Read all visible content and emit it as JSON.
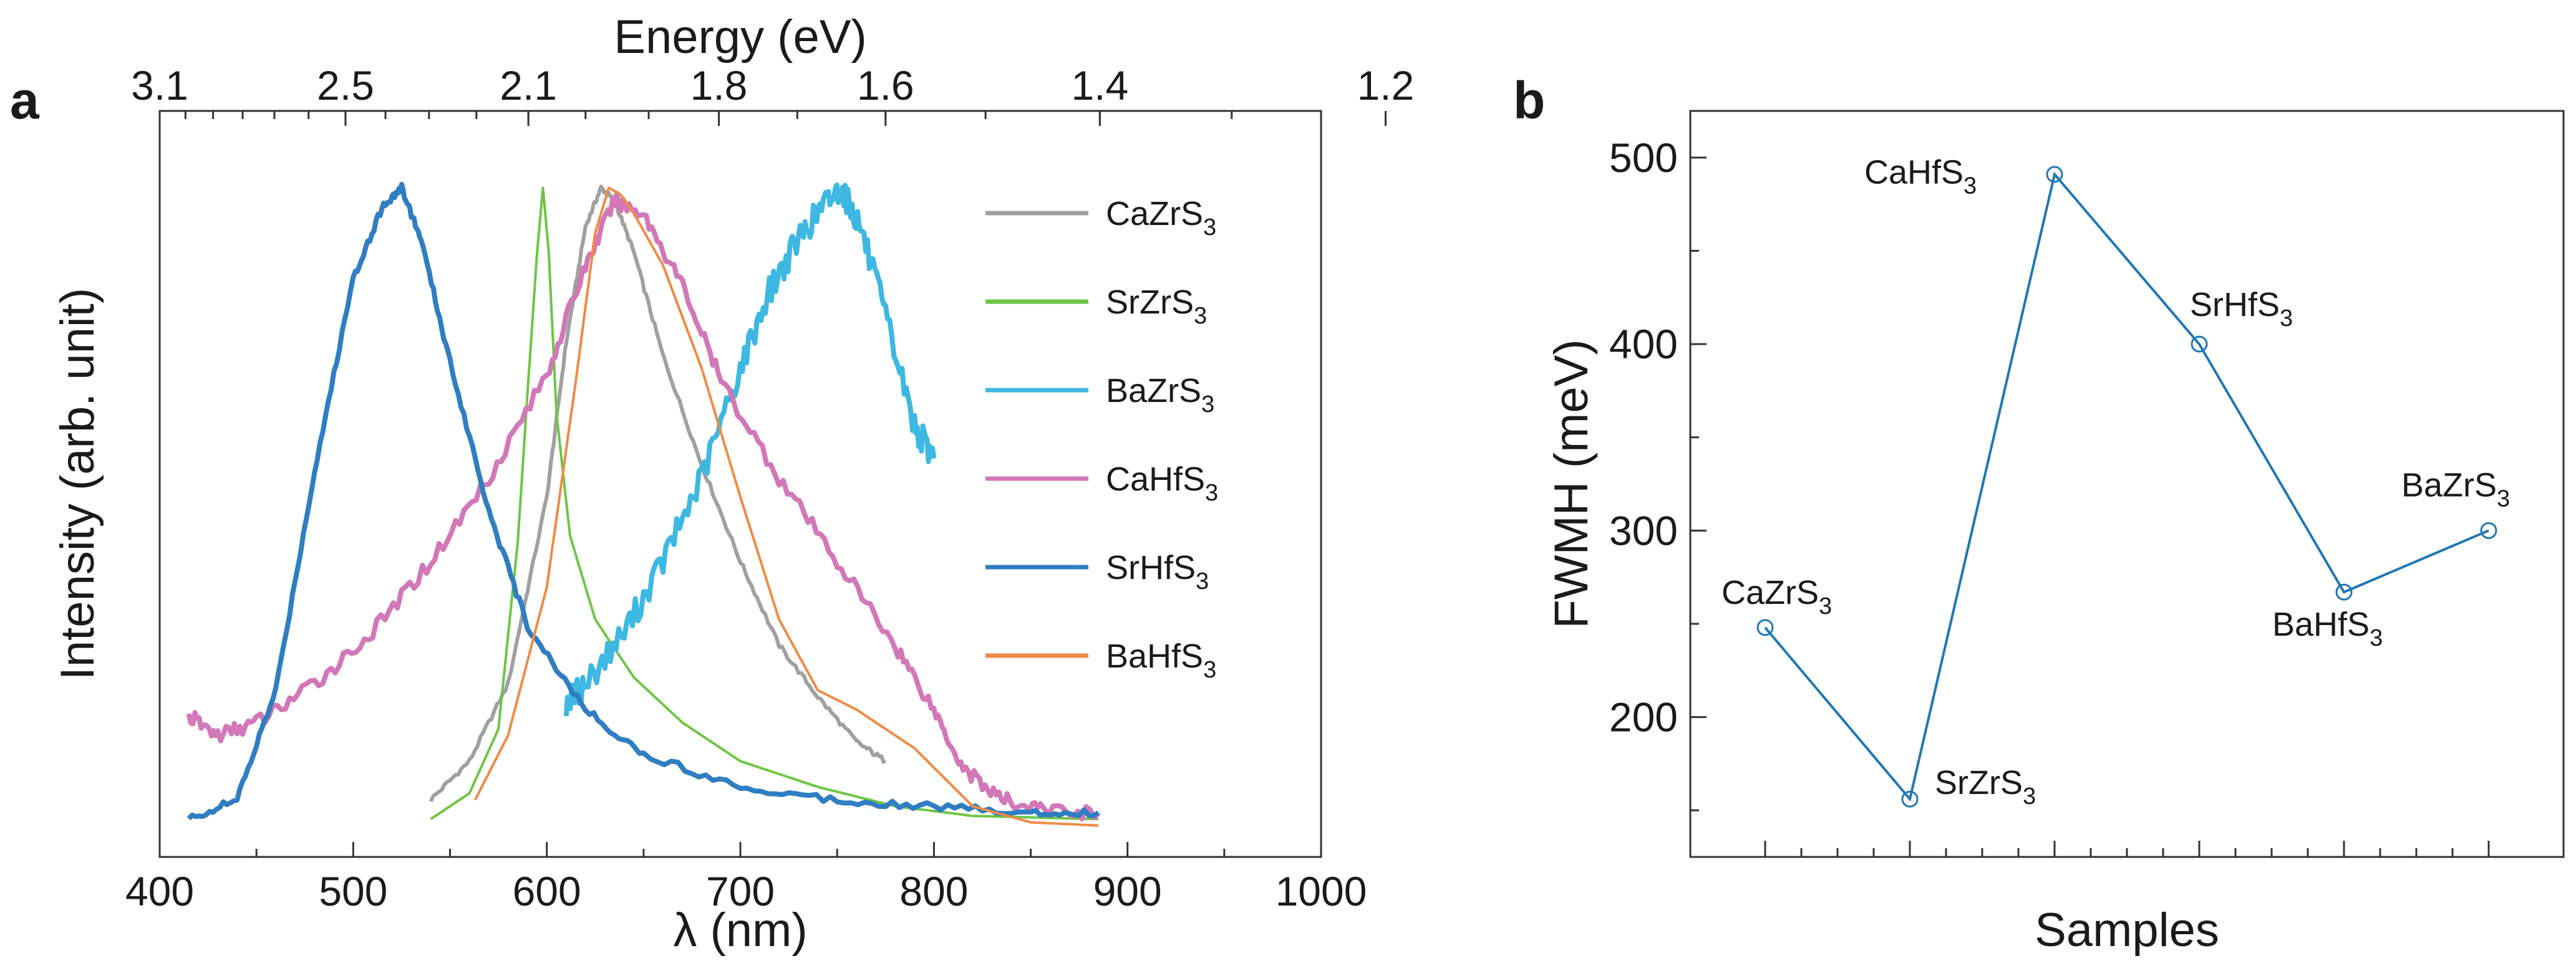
{
  "figure": {
    "panel_a_letter": "a",
    "panel_b_letter": "b"
  },
  "chart_data": [
    {
      "panel": "a",
      "type": "line",
      "title": "",
      "xlabel": "λ (nm)",
      "ylabel": "Intensity (arb. unit)",
      "top_xlabel": "Energy (eV)",
      "xlim": [
        400,
        1000
      ],
      "ylim": [
        0,
        1.1
      ],
      "xticks": [
        400,
        500,
        600,
        700,
        800,
        900,
        1000
      ],
      "xtick_labels": [
        "400",
        "500",
        "600",
        "700",
        "800",
        "900",
        "1000"
      ],
      "top_ticks": [
        3.1,
        2.5,
        2.1,
        1.8,
        1.6,
        1.4,
        1.2
      ],
      "top_tick_labels": [
        "3.1",
        "2.5",
        "2.1",
        "1.8",
        "1.6",
        "1.4",
        "1.2"
      ],
      "legend_position": "top-right",
      "series": [
        {
          "name": "CaZrS",
          "sub": "3",
          "color": "#a0a0a0",
          "width": 6,
          "x": [
            540,
            560,
            580,
            600,
            610,
            620,
            628,
            635,
            645,
            660,
            680,
            700,
            720,
            740,
            760,
            775
          ],
          "y": [
            0.05,
            0.11,
            0.23,
            0.52,
            0.76,
            0.94,
            1.0,
            0.98,
            0.9,
            0.74,
            0.57,
            0.42,
            0.29,
            0.21,
            0.14,
            0.11
          ]
        },
        {
          "name": "SrZrS",
          "sub": "3",
          "color": "#6cc644",
          "width": 4,
          "x": [
            540,
            560,
            575,
            585,
            590,
            595,
            598,
            601,
            605,
            612,
            625,
            645,
            670,
            700,
            740,
            780,
            820,
            885
          ],
          "y": [
            0.02,
            0.06,
            0.16,
            0.45,
            0.68,
            0.9,
            1.0,
            0.9,
            0.65,
            0.46,
            0.33,
            0.24,
            0.17,
            0.11,
            0.07,
            0.04,
            0.025,
            0.02
          ]
        },
        {
          "name": "BaZrS",
          "sub": "3",
          "color": "#3db8e2",
          "width": 8,
          "x": [
            610,
            620,
            640,
            660,
            680,
            700,
            715,
            730,
            742,
            752,
            762,
            775,
            790,
            800
          ],
          "y": [
            0.2,
            0.23,
            0.31,
            0.42,
            0.55,
            0.72,
            0.84,
            0.92,
            0.97,
            1.0,
            0.94,
            0.8,
            0.63,
            0.58
          ]
        },
        {
          "name": "CaHfS",
          "sub": "3",
          "color": "#d277b8",
          "width": 8,
          "x": [
            415,
            430,
            450,
            480,
            510,
            540,
            570,
            600,
            620,
            635,
            650,
            670,
            690,
            720,
            750,
            780,
            800,
            815,
            835,
            855,
            885
          ],
          "y": [
            0.18,
            0.15,
            0.17,
            0.23,
            0.31,
            0.42,
            0.55,
            0.71,
            0.88,
            0.98,
            0.96,
            0.85,
            0.7,
            0.55,
            0.42,
            0.29,
            0.19,
            0.1,
            0.05,
            0.035,
            0.03
          ]
        },
        {
          "name": "SrHfS",
          "sub": "3",
          "color": "#2f7ec2",
          "width": 8,
          "x": [
            415,
            440,
            460,
            480,
            500,
            515,
            525,
            535,
            550,
            570,
            590,
            620,
            650,
            700,
            750,
            800,
            850,
            885
          ],
          "y": [
            0.02,
            0.05,
            0.22,
            0.56,
            0.86,
            0.97,
            1.0,
            0.92,
            0.73,
            0.5,
            0.32,
            0.19,
            0.12,
            0.07,
            0.05,
            0.04,
            0.03,
            0.03
          ]
        },
        {
          "name": "BaHfS",
          "sub": "3",
          "color": "#f08a45",
          "width": 4,
          "x": [
            563,
            580,
            600,
            615,
            625,
            632,
            638,
            645,
            660,
            680,
            700,
            720,
            740,
            760,
            790,
            820,
            850,
            885
          ],
          "y": [
            0.05,
            0.15,
            0.38,
            0.7,
            0.93,
            1.0,
            0.99,
            0.96,
            0.88,
            0.72,
            0.52,
            0.33,
            0.22,
            0.19,
            0.13,
            0.04,
            0.015,
            0.01
          ]
        }
      ]
    },
    {
      "panel": "b",
      "type": "line",
      "title": "",
      "xlabel": "Samples",
      "ylabel": "FWMH (meV)",
      "ylim": [
        125,
        525
      ],
      "yticks": [
        200,
        300,
        400,
        500
      ],
      "ytick_labels": [
        "200",
        "300",
        "400",
        "500"
      ],
      "color": "#1f77b4",
      "points": [
        {
          "label": "CaZrS",
          "sub": "3",
          "value": 248
        },
        {
          "label": "SrZrS",
          "sub": "3",
          "value": 156
        },
        {
          "label": "CaHfS",
          "sub": "3",
          "value": 491
        },
        {
          "label": "SrHfS",
          "sub": "3",
          "value": 400
        },
        {
          "label": "BaHfS",
          "sub": "3",
          "value": 267
        },
        {
          "label": "BaZrS",
          "sub": "3",
          "value": 300
        }
      ]
    }
  ]
}
